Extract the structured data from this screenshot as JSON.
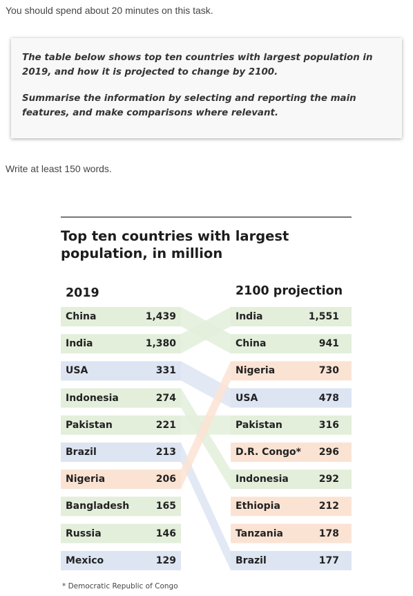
{
  "instructions": {
    "time_note": "You should spend about 20 minutes on this task.",
    "task_paragraph_1": "The table below shows top ten countries with largest population in 2019, and how it is projected to change by 2100.",
    "task_paragraph_2": "Summarise the information by selecting and reporting the main features, and make comparisons where relevant.",
    "word_count_note": "Write at least 150 words."
  },
  "chart_data": {
    "type": "table",
    "title": "Top ten countries with largest population, in million",
    "unit": "million",
    "columns": [
      {
        "header": "2019",
        "rows": [
          {
            "country": "China",
            "value": "1,439"
          },
          {
            "country": "India",
            "value": "1,380"
          },
          {
            "country": "USA",
            "value": "331"
          },
          {
            "country": "Indonesia",
            "value": "274"
          },
          {
            "country": "Pakistan",
            "value": "221"
          },
          {
            "country": "Brazil",
            "value": "213"
          },
          {
            "country": "Nigeria",
            "value": "206"
          },
          {
            "country": "Bangladesh",
            "value": "165"
          },
          {
            "country": "Russia",
            "value": "146"
          },
          {
            "country": "Mexico",
            "value": "129"
          }
        ]
      },
      {
        "header": "2100 projection",
        "rows": [
          {
            "country": "India",
            "value": "1,551"
          },
          {
            "country": "China",
            "value": "941"
          },
          {
            "country": "Nigeria",
            "value": "730"
          },
          {
            "country": "USA",
            "value": "478"
          },
          {
            "country": "Pakistan",
            "value": "316"
          },
          {
            "country": "D.R. Congo*",
            "value": "296"
          },
          {
            "country": "Indonesia",
            "value": "292"
          },
          {
            "country": "Ethiopia",
            "value": "212"
          },
          {
            "country": "Tanzania",
            "value": "178"
          },
          {
            "country": "Brazil",
            "value": "177"
          }
        ]
      }
    ],
    "footnote": "* Democratic Republic of Congo",
    "colors": {
      "asia": "#e3eedb",
      "america": "#dde5f2",
      "africa": "#fbe3d4",
      "rule": "#777777"
    },
    "region_by_country": {
      "China": "asia",
      "India": "asia",
      "Indonesia": "asia",
      "Pakistan": "asia",
      "Bangladesh": "asia",
      "Russia": "asia",
      "USA": "america",
      "Brazil": "america",
      "Mexico": "america",
      "Nigeria": "africa",
      "D.R. Congo*": "africa",
      "Ethiopia": "africa",
      "Tanzania": "africa"
    }
  }
}
